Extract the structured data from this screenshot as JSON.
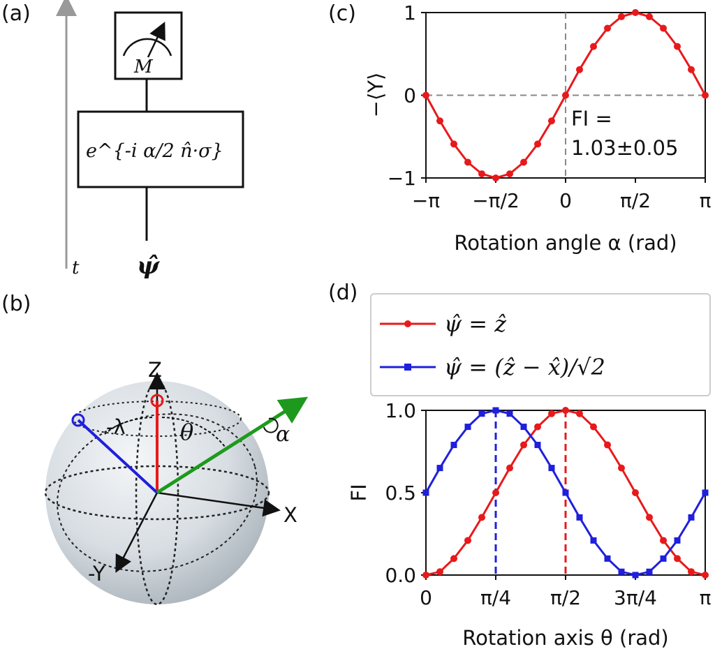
{
  "panels": {
    "a": "(a)",
    "b": "(b)",
    "c": "(c)",
    "d": "(d)"
  },
  "circuit": {
    "meter_label": "M",
    "gate_label": "e^{-i α/2 n̂·σ}",
    "state_label": "ψ̂",
    "time_label": "t"
  },
  "sphere": {
    "z_label": "Z",
    "x_label": "X",
    "y_label": "-Y",
    "lambda_label": "-λ",
    "theta_label": "θ",
    "alpha_label": "α"
  },
  "chart_c": {
    "ylabel": "−⟨Y⟩",
    "xlabel": "Rotation angle α (rad)",
    "annotation_line1": "FI =",
    "annotation_line2": "1.03±0.05",
    "xticks": [
      "−π",
      "−π/2",
      "0",
      "π/2",
      "π"
    ],
    "yticks": [
      "1",
      "0",
      "−1"
    ]
  },
  "chart_d": {
    "ylabel": "FI",
    "xlabel": "Rotation axis θ (rad)",
    "xticks": [
      "0",
      "π/4",
      "π/2",
      "3π/4",
      "π"
    ],
    "yticks": [
      "1.0",
      "0.5",
      "0.0"
    ],
    "legend_red": "ψ̂ = ẑ",
    "legend_blue": "ψ̂ = (ẑ − x̂)/√2"
  },
  "chart_data": [
    {
      "type": "line",
      "xlabel": "Rotation angle α (rad)",
      "ylabel": "−⟨Y⟩",
      "xlim": [
        -3.1416,
        3.1416
      ],
      "ylim": [
        -1,
        1
      ],
      "series": [
        {
          "color": "#e8191b",
          "x": [
            -3.1416,
            -2.8274,
            -2.5133,
            -2.1991,
            -1.885,
            -1.5708,
            -1.2566,
            -0.9425,
            -0.6283,
            -0.3142,
            0,
            0.3142,
            0.6283,
            0.9425,
            1.2566,
            1.5708,
            1.885,
            2.1991,
            2.5133,
            2.8274,
            3.1416
          ],
          "y": [
            0,
            -0.31,
            -0.59,
            -0.81,
            -0.95,
            -1.0,
            -0.95,
            -0.81,
            -0.59,
            -0.31,
            0,
            0.31,
            0.59,
            0.81,
            0.95,
            1.0,
            0.95,
            0.81,
            0.59,
            0.31,
            0
          ]
        }
      ],
      "guides": {
        "vertical_at": 0,
        "horizontal_at": 0
      }
    },
    {
      "type": "line",
      "xlabel": "Rotation axis θ (rad)",
      "ylabel": "FI",
      "xlim": [
        0,
        3.1416
      ],
      "ylim": [
        0,
        1
      ],
      "series": [
        {
          "name": "ψ̂ = ẑ",
          "color": "#e8191b",
          "x": [
            0,
            0.1571,
            0.3142,
            0.4712,
            0.6283,
            0.7854,
            0.9425,
            1.0996,
            1.2566,
            1.4137,
            1.5708,
            1.7279,
            1.885,
            2.042,
            2.1991,
            2.3562,
            2.5133,
            2.6704,
            2.8274,
            2.9845,
            3.1416
          ],
          "y": [
            0,
            0.02,
            0.1,
            0.21,
            0.35,
            0.5,
            0.65,
            0.79,
            0.9,
            0.98,
            1.0,
            0.98,
            0.9,
            0.79,
            0.65,
            0.5,
            0.35,
            0.21,
            0.1,
            0.02,
            0
          ]
        },
        {
          "name": "ψ̂ = (ẑ − x̂)/√2",
          "color": "#1f1fdd",
          "x": [
            0,
            0.1571,
            0.3142,
            0.4712,
            0.6283,
            0.7854,
            0.9425,
            1.0996,
            1.2566,
            1.4137,
            1.5708,
            1.7279,
            1.885,
            2.042,
            2.1991,
            2.3562,
            2.5133,
            2.6704,
            2.8274,
            2.9845,
            3.1416
          ],
          "y": [
            0.5,
            0.65,
            0.79,
            0.9,
            0.98,
            1.0,
            0.98,
            0.9,
            0.79,
            0.65,
            0.5,
            0.35,
            0.21,
            0.1,
            0.02,
            0,
            0.02,
            0.1,
            0.21,
            0.35,
            0.5
          ]
        }
      ],
      "guides": {
        "vertical_red_at": 1.5708,
        "vertical_blue_at": 0.7854
      }
    }
  ]
}
